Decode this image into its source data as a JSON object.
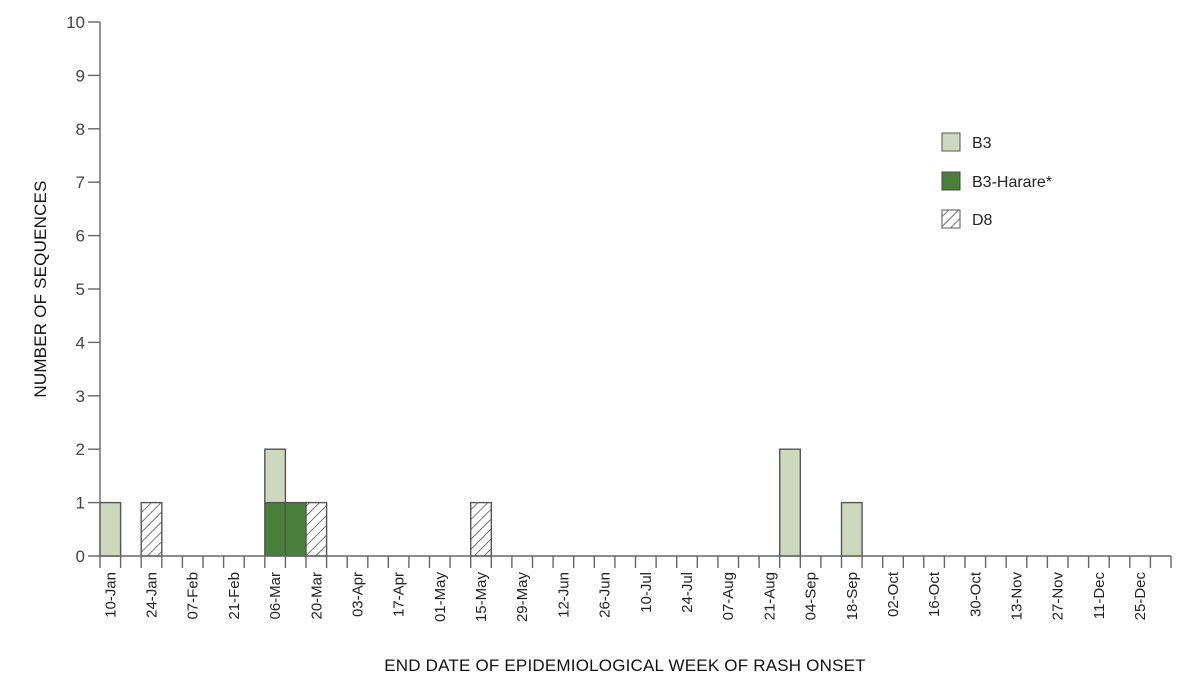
{
  "chart_data": {
    "type": "bar",
    "stacked": true,
    "title": "",
    "xlabel": "END DATE OF EPIDEMIOLOGICAL WEEK OF RASH ONSET",
    "ylabel": "NUMBER OF SEQUENCES",
    "ylim": [
      0,
      10
    ],
    "yticks": [
      0,
      1,
      2,
      3,
      4,
      5,
      6,
      7,
      8,
      9,
      10
    ],
    "grid": false,
    "legend_position": "upper-right",
    "weeks": 52,
    "xtick_labels": [
      "10-Jan",
      "24-Jan",
      "07-Feb",
      "21-Feb",
      "06-Mar",
      "20-Mar",
      "03-Apr",
      "17-Apr",
      "01-May",
      "15-May",
      "29-May",
      "12-Jun",
      "26-Jun",
      "10-Jul",
      "24-Jul",
      "07-Aug",
      "21-Aug",
      "04-Sep",
      "18-Sep",
      "02-Oct",
      "16-Oct",
      "30-Oct",
      "13-Nov",
      "27-Nov",
      "11-Dec",
      "25-Dec"
    ],
    "series": [
      {
        "name": "B3",
        "color": "#cdd8bd",
        "pattern": "solid",
        "points": [
          {
            "week_index": 0,
            "label": "10-Jan",
            "value": 1
          },
          {
            "week_index": 8,
            "label": "06-Mar",
            "value": 1
          },
          {
            "week_index": 33,
            "label": "28-Aug",
            "value": 2
          },
          {
            "week_index": 36,
            "label": "18-Sep",
            "value": 1
          }
        ]
      },
      {
        "name": "B3-Harare*",
        "color": "#4a7f3b",
        "pattern": "solid",
        "points": [
          {
            "week_index": 8,
            "label": "06-Mar",
            "value": 1
          },
          {
            "week_index": 9,
            "label": "13-Mar",
            "value": 1
          }
        ]
      },
      {
        "name": "D8",
        "color": "#ffffff",
        "pattern": "hatch",
        "points": [
          {
            "week_index": 2,
            "label": "24-Jan",
            "value": 1
          },
          {
            "week_index": 10,
            "label": "20-Mar",
            "value": 1
          },
          {
            "week_index": 18,
            "label": "15-May",
            "value": 1
          }
        ]
      }
    ]
  },
  "legend": {
    "items": [
      {
        "label": "B3"
      },
      {
        "label": "B3-Harare*"
      },
      {
        "label": "D8"
      }
    ]
  },
  "axes": {
    "x_title": "END DATE OF EPIDEMIOLOGICAL WEEK OF RASH ONSET",
    "y_title": "NUMBER OF SEQUENCES"
  }
}
